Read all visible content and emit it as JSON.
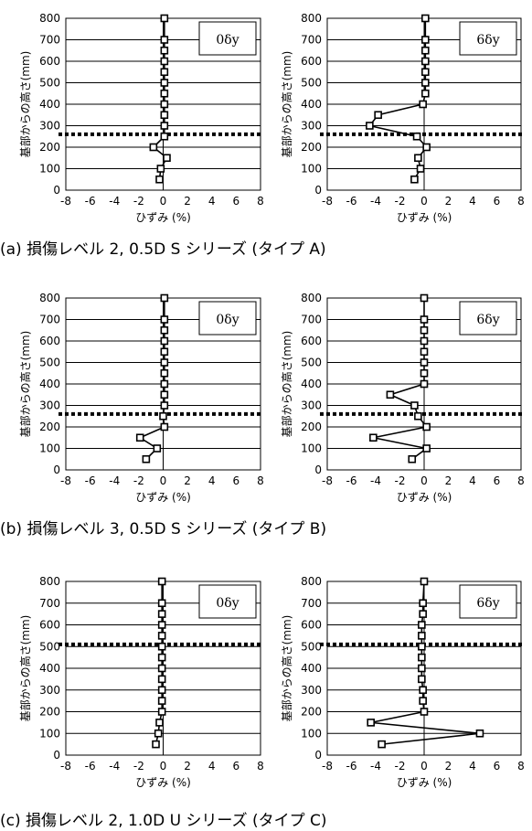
{
  "captions": [
    "(a) 損傷レベル 2, 0.5D  S シリーズ  (タイプ A)",
    "(b) 損傷レベル 3, 0.5D  S シリーズ  (タイプ B)",
    "(c) 損傷レベル 2, 1.0D  U シリーズ  (タイプ C)"
  ],
  "chart_data": [
    {
      "type": "line",
      "panel": "a",
      "legend": "0δy",
      "xlabel": "ひずみ  (%)",
      "ylabel": "基部からの高さ(mm)",
      "xlim": [
        -8,
        8
      ],
      "ylim": [
        0,
        800
      ],
      "xticks": [
        -8,
        -6,
        -4,
        -2,
        0,
        2,
        4,
        6,
        8
      ],
      "yticks": [
        0,
        100,
        200,
        300,
        400,
        500,
        600,
        700,
        800
      ],
      "grid": "horizontal",
      "dashed_line_y": 260,
      "x": [
        -0.3,
        -0.2,
        0.3,
        -0.8,
        0.1,
        0.1,
        0.1,
        0.1,
        0.1,
        0.1,
        0.1,
        0.1,
        0.1,
        0.1,
        0.1
      ],
      "y": [
        50,
        100,
        150,
        200,
        250,
        300,
        350,
        400,
        450,
        500,
        550,
        600,
        650,
        700,
        800
      ]
    },
    {
      "type": "line",
      "panel": "a",
      "legend": "6δy",
      "xlabel": "ひずみ  (%)",
      "ylabel": "基部からの高さ(mm)",
      "xlim": [
        -8,
        8
      ],
      "ylim": [
        0,
        800
      ],
      "xticks": [
        -8,
        -6,
        -4,
        -2,
        0,
        2,
        4,
        6,
        8
      ],
      "yticks": [
        0,
        100,
        200,
        300,
        400,
        500,
        600,
        700,
        800
      ],
      "grid": "horizontal",
      "dashed_line_y": 260,
      "x": [
        -0.8,
        -0.3,
        -0.5,
        0.2,
        -0.6,
        -4.5,
        -3.8,
        -0.1,
        0.1,
        0.1,
        0.1,
        0.1,
        0.1,
        0.1,
        0.1
      ],
      "y": [
        50,
        100,
        150,
        200,
        250,
        300,
        350,
        400,
        450,
        500,
        550,
        600,
        650,
        700,
        800
      ]
    },
    {
      "type": "line",
      "panel": "b",
      "legend": "0δy",
      "xlabel": "ひずみ  (%)",
      "ylabel": "基部からの高さ(mm)",
      "xlim": [
        -8,
        8
      ],
      "ylim": [
        0,
        800
      ],
      "xticks": [
        -8,
        -6,
        -4,
        -2,
        0,
        2,
        4,
        6,
        8
      ],
      "yticks": [
        0,
        100,
        200,
        300,
        400,
        500,
        600,
        700,
        800
      ],
      "grid": "horizontal",
      "dashed_line_y": 260,
      "x": [
        -1.4,
        -0.5,
        -1.9,
        0.1,
        0.0,
        0.1,
        0.1,
        0.1,
        0.1,
        0.1,
        0.1,
        0.1,
        0.1,
        0.1,
        0.1
      ],
      "y": [
        50,
        100,
        150,
        200,
        250,
        300,
        350,
        400,
        450,
        500,
        550,
        600,
        650,
        700,
        800
      ]
    },
    {
      "type": "line",
      "panel": "b",
      "legend": "6δy",
      "xlabel": "ひずみ  (%)",
      "ylabel": "基部からの高さ(mm)",
      "xlim": [
        -8,
        8
      ],
      "ylim": [
        0,
        800
      ],
      "xticks": [
        -8,
        -6,
        -4,
        -2,
        0,
        2,
        4,
        6,
        8
      ],
      "yticks": [
        0,
        100,
        200,
        300,
        400,
        500,
        600,
        700,
        800
      ],
      "grid": "horizontal",
      "dashed_line_y": 260,
      "x": [
        -1.0,
        0.2,
        -4.2,
        0.2,
        -0.5,
        -0.8,
        -2.8,
        0.0,
        0.0,
        0.0,
        0.0,
        0.0,
        0.0,
        0.0,
        0.0
      ],
      "y": [
        50,
        100,
        150,
        200,
        250,
        300,
        350,
        400,
        450,
        500,
        550,
        600,
        650,
        700,
        800
      ]
    },
    {
      "type": "line",
      "panel": "c",
      "legend": "0δy",
      "xlabel": "ひずみ  (%)",
      "ylabel": "基部からの高さ(mm)",
      "xlim": [
        -8,
        8
      ],
      "ylim": [
        0,
        800
      ],
      "xticks": [
        -8,
        -6,
        -4,
        -2,
        0,
        2,
        4,
        6,
        8
      ],
      "yticks": [
        0,
        100,
        200,
        300,
        400,
        500,
        600,
        700,
        800
      ],
      "grid": "horizontal",
      "dashed_line_y": 510,
      "x": [
        -0.6,
        -0.4,
        -0.3,
        -0.1,
        -0.1,
        -0.1,
        -0.1,
        -0.1,
        -0.1,
        -0.1,
        -0.1,
        -0.1,
        -0.1,
        -0.1,
        -0.1
      ],
      "y": [
        50,
        100,
        150,
        200,
        250,
        300,
        350,
        400,
        450,
        500,
        550,
        600,
        650,
        700,
        800
      ]
    },
    {
      "type": "line",
      "panel": "c",
      "legend": "6δy",
      "xlabel": "ひずみ  (%)",
      "ylabel": "基部からの高さ(mm)",
      "xlim": [
        -8,
        8
      ],
      "ylim": [
        0,
        800
      ],
      "xticks": [
        -8,
        -6,
        -4,
        -2,
        0,
        2,
        4,
        6,
        8
      ],
      "yticks": [
        0,
        100,
        200,
        300,
        400,
        500,
        600,
        700,
        800
      ],
      "grid": "horizontal",
      "dashed_line_y": 510,
      "x": [
        -3.5,
        4.6,
        -4.4,
        0.0,
        -0.1,
        -0.1,
        -0.2,
        -0.2,
        -0.2,
        -0.2,
        -0.2,
        -0.2,
        -0.1,
        -0.1,
        0.0
      ],
      "y": [
        50,
        100,
        150,
        200,
        250,
        300,
        350,
        400,
        450,
        500,
        550,
        600,
        650,
        700,
        800
      ]
    }
  ]
}
